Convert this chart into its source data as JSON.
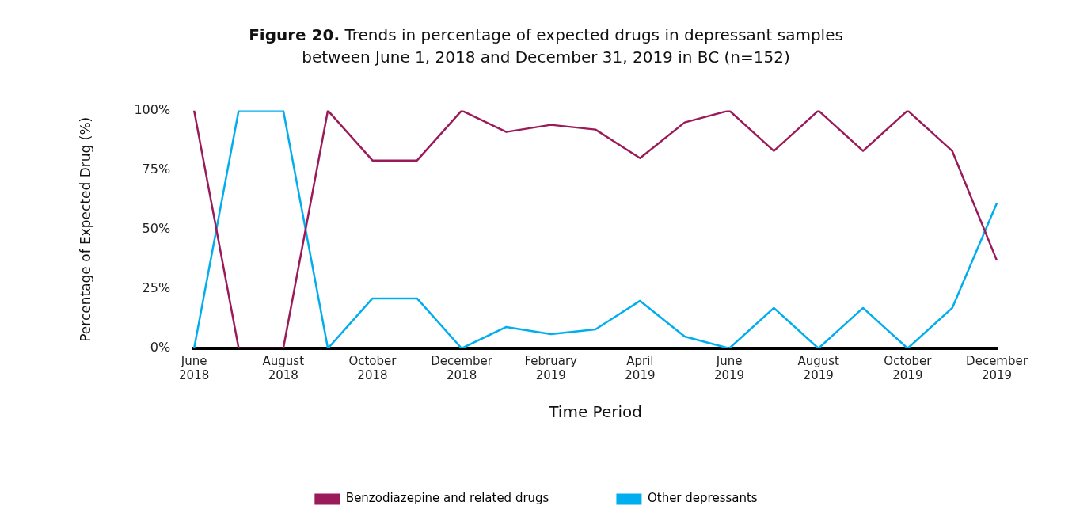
{
  "chart_data": {
    "type": "line",
    "title": "Figure 20. Trends in percentage of expected drugs in depressant samples between June 1, 2018 and December 31, 2019 in BC (n=152)",
    "xlabel": "Time Period",
    "ylabel": "Percentage of Expected Drug (%)",
    "categories": [
      "June 2018",
      null,
      "August 2018",
      null,
      "October 2018",
      null,
      "December 2018",
      null,
      "February 2019",
      null,
      "April 2019",
      null,
      "June 2019",
      null,
      "August 2019",
      null,
      "October 2019",
      null,
      "December 2019"
    ],
    "series": [
      {
        "name": "Benzodiazepine and related drugs",
        "color": "#9b1b5a",
        "values": [
          100,
          0,
          0,
          100,
          79,
          79,
          100,
          91,
          94,
          92,
          80,
          95,
          100,
          83,
          100,
          83,
          100,
          83,
          37
        ]
      },
      {
        "name": "Other depressants",
        "color": "#00aeef",
        "values": [
          0,
          100,
          100,
          0,
          21,
          21,
          0,
          9,
          6,
          8,
          20,
          5,
          0,
          17,
          0,
          17,
          0,
          17,
          61
        ]
      }
    ],
    "ylim": [
      0,
      100
    ],
    "yticks": [
      {
        "value": 0,
        "label": "0%"
      },
      {
        "value": 25,
        "label": "25%"
      },
      {
        "value": 50,
        "label": "50%"
      },
      {
        "value": 75,
        "label": "75%"
      },
      {
        "value": 100,
        "label": "100%"
      }
    ],
    "grid": false,
    "legend": "bottom",
    "marker": "none",
    "line_style": "solid"
  }
}
